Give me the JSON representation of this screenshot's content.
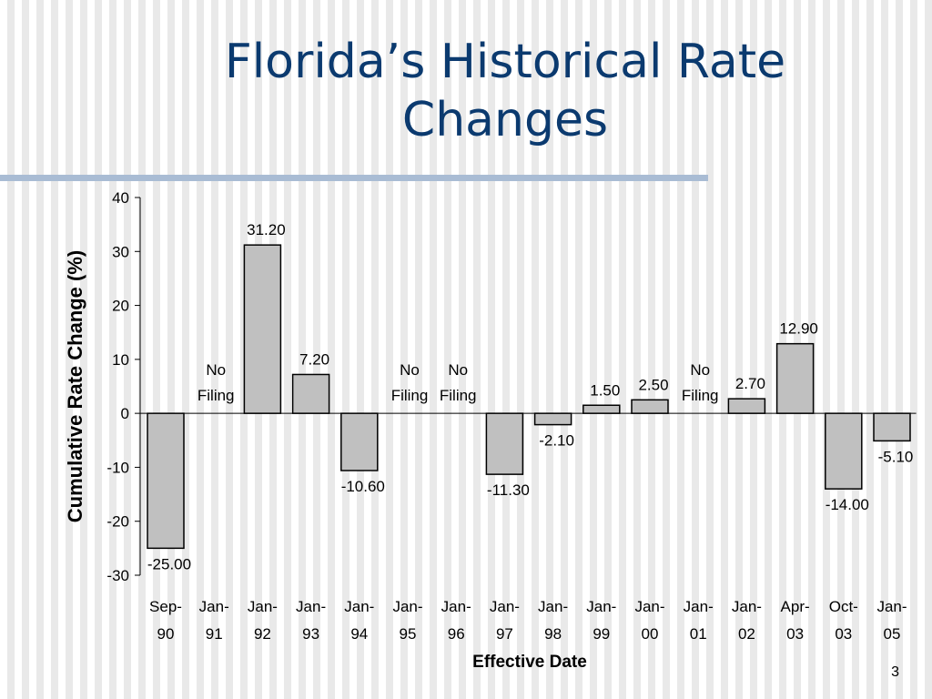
{
  "slide": {
    "title_line1": "Florida’s Historical Rate",
    "title_line2": "Changes",
    "page_number": "3",
    "accent_color": "#a9bcd4",
    "title_color": "#0b3a6f"
  },
  "chart_data": {
    "type": "bar",
    "title": "",
    "xlabel": "Effective Date",
    "ylabel": "Cumulative Rate Change (%)",
    "ylim": [
      -30,
      40
    ],
    "yticks": [
      -30,
      -20,
      -10,
      0,
      10,
      20,
      30,
      40
    ],
    "grid": false,
    "bar_color": "#c0c0c0",
    "categories": [
      [
        "Sep-",
        "90"
      ],
      [
        "Jan-",
        "91"
      ],
      [
        "Jan-",
        "92"
      ],
      [
        "Jan-",
        "93"
      ],
      [
        "Jan-",
        "94"
      ],
      [
        "Jan-",
        "95"
      ],
      [
        "Jan-",
        "96"
      ],
      [
        "Jan-",
        "97"
      ],
      [
        "Jan-",
        "98"
      ],
      [
        "Jan-",
        "99"
      ],
      [
        "Jan-",
        "00"
      ],
      [
        "Jan-",
        "01"
      ],
      [
        "Jan-",
        "02"
      ],
      [
        "Apr-",
        "03"
      ],
      [
        "Oct-",
        "03"
      ],
      [
        "Jan-",
        "05"
      ]
    ],
    "values": [
      -25.0,
      null,
      31.2,
      7.2,
      -10.6,
      null,
      null,
      -11.3,
      -2.1,
      1.5,
      2.5,
      null,
      2.7,
      12.9,
      -14.0,
      -5.1
    ],
    "labels": [
      [
        "-25.00"
      ],
      [
        "No",
        "Filing"
      ],
      [
        "31.20"
      ],
      [
        "7.20"
      ],
      [
        "-10.60"
      ],
      [
        "No",
        "Filing"
      ],
      [
        "No",
        "Filing"
      ],
      [
        "-11.30"
      ],
      [
        "-2.10"
      ],
      [
        "1.50"
      ],
      [
        "2.50"
      ],
      [
        "No",
        "Filing"
      ],
      [
        "2.70"
      ],
      [
        "12.90"
      ],
      [
        "-14.00"
      ],
      [
        "-5.10"
      ]
    ]
  }
}
